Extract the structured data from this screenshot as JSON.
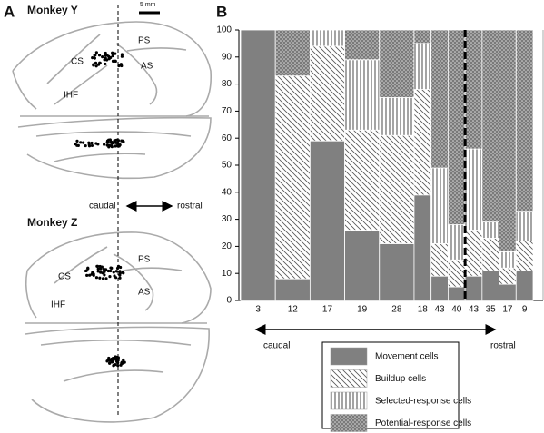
{
  "panel_a": {
    "label": "A",
    "monkey_y": {
      "title": "Monkey Y",
      "scale_bar": "5 mm",
      "cs": "CS",
      "ps": "PS",
      "as": "AS",
      "ihf": "IHF"
    },
    "direction": {
      "caudal": "caudal",
      "rostral": "rostral"
    },
    "monkey_z": {
      "title": "Monkey Z",
      "cs": "CS",
      "ps": "PS",
      "as": "AS",
      "ihf": "IHF"
    }
  },
  "chart_data": {
    "type": "stacked_bar",
    "panel_label": "B",
    "categories": [
      "3",
      "12",
      "17",
      "19",
      "28",
      "18",
      "43",
      "40",
      "43",
      "35",
      "17",
      "9"
    ],
    "series": [
      {
        "name": "Movement cells",
        "color": "#808080",
        "hatch": "solid",
        "values": [
          100,
          8,
          59,
          26,
          21,
          39,
          9,
          5,
          9,
          11,
          6,
          11
        ]
      },
      {
        "name": "Buildup cells",
        "color": "#555555",
        "hatch": "diagonal",
        "values": [
          0,
          75,
          35,
          37,
          40,
          39,
          12,
          10,
          17,
          12,
          6,
          11
        ]
      },
      {
        "name": "Selected-response cells",
        "color": "#333333",
        "hatch": "vertical",
        "values": [
          0,
          0,
          6,
          26,
          14,
          17,
          28,
          13,
          30,
          6,
          6,
          11
        ]
      },
      {
        "name": "Potential-response cells",
        "color": "#7a7a7a",
        "hatch": "dots",
        "values": [
          0,
          17,
          0,
          11,
          25,
          5,
          51,
          72,
          44,
          71,
          82,
          67
        ]
      }
    ],
    "ylim": [
      0,
      100
    ],
    "yticks": [
      0,
      10,
      20,
      30,
      40,
      50,
      60,
      70,
      80,
      90,
      100
    ],
    "grid": false,
    "legend": "bottom",
    "x_direction": {
      "left": "caudal",
      "right": "rostral"
    }
  }
}
